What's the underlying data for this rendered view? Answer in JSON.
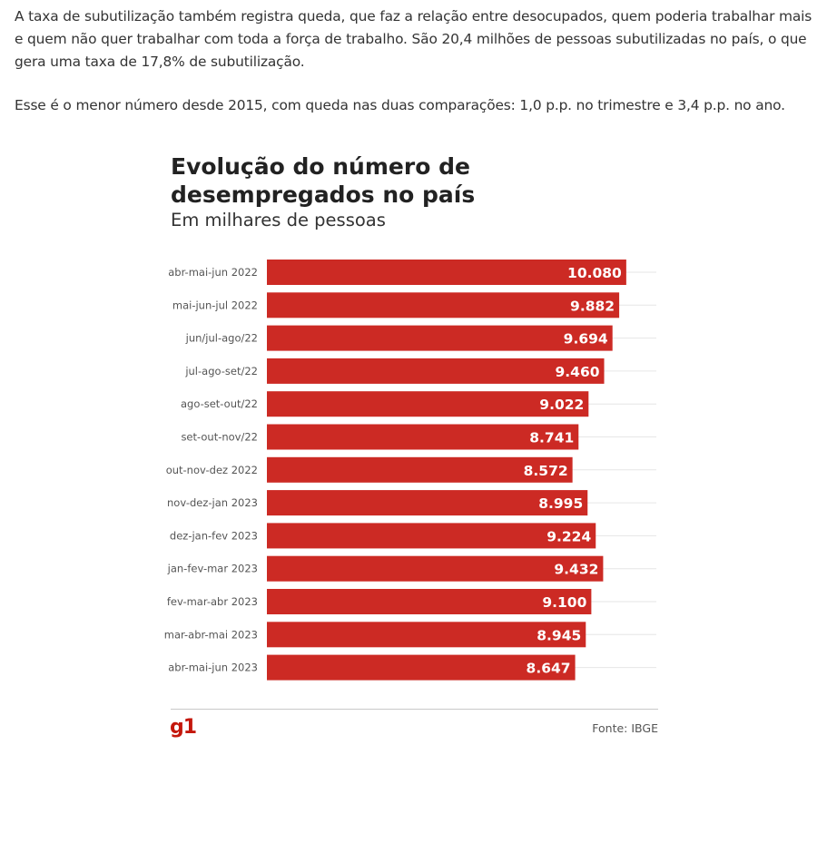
{
  "article": {
    "paragraph_1": "A taxa de subutilização também registra queda, que faz a relação entre desocupados, quem poderia trabalhar mais e quem não quer trabalhar com toda a força de trabalho. São 20,4 milhões de pessoas subutilizadas no país, o que gera uma taxa de 17,8% de subutilização.",
    "paragraph_2": "Esse é o menor número desde 2015, com queda nas duas comparações: 1,0 p.p. no trimestre e 3,4 p.p. no ano."
  },
  "footer": {
    "logo_text": "g1",
    "source": "Fonte: IBGE"
  },
  "colors": {
    "bar": "#cc2a24",
    "logo": "#c4170c"
  },
  "chart_data": {
    "type": "bar",
    "orientation": "horizontal",
    "title": "Evolução do número de desempregados no país",
    "subtitle": "Em milhares de pessoas",
    "categories": [
      "abr-mai-jun 2022",
      "mai-jun-jul 2022",
      "jun/jul-ago/22",
      "jul-ago-set/22",
      "ago-set-out/22",
      "set-out-nov/22",
      "out-nov-dez 2022",
      "nov-dez-jan 2023",
      "dez-jan-fev 2023",
      "jan-fev-mar 2023",
      "fev-mar-abr 2023",
      "mar-abr-mai 2023",
      "abr-mai-jun 2023"
    ],
    "values": [
      10080,
      9882,
      9694,
      9460,
      9022,
      8741,
      8572,
      8995,
      9224,
      9432,
      9100,
      8945,
      8647
    ],
    "value_labels": [
      "10.080",
      "9.882",
      "9.694",
      "9.460",
      "9.022",
      "8.741",
      "8.572",
      "8.995",
      "9.224",
      "9.432",
      "9.100",
      "8.945",
      "8.647"
    ],
    "xlim": [
      0,
      11000
    ],
    "grid": true,
    "data_labels": "inside-end"
  }
}
